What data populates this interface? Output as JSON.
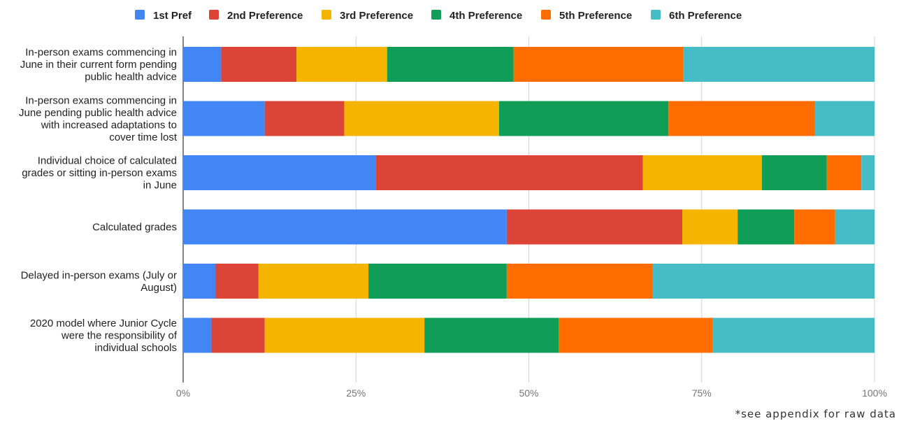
{
  "chart_data": {
    "type": "bar",
    "orientation": "horizontal",
    "stacked": true,
    "categories": [
      [
        "In-person exams commencing in",
        "June in their current form pending",
        "public health advice"
      ],
      [
        "In-person exams commencing in",
        "June pending public health advice",
        "with increased adaptations to",
        "cover time lost"
      ],
      [
        "Individual choice of calculated",
        "grades or sitting in-person exams",
        "in June"
      ],
      [
        "Calculated grades"
      ],
      [
        "Delayed in-person exams (July or",
        "August)"
      ],
      [
        "2020 model where Junior Cycle",
        "were the responsibility of",
        "individual schools"
      ]
    ],
    "series": [
      {
        "name": "1st Pref",
        "color": "#4285F4",
        "values": [
          5.5,
          11.8,
          27.9,
          46.8,
          4.7,
          4.1
        ]
      },
      {
        "name": "2nd Preference",
        "color": "#DB4437",
        "values": [
          10.9,
          11.5,
          38.6,
          25.4,
          6.2,
          7.7
        ]
      },
      {
        "name": "3rd Preference",
        "color": "#F4B400",
        "values": [
          13.1,
          22.4,
          17.2,
          8.0,
          15.9,
          23.1
        ]
      },
      {
        "name": "4th Preference",
        "color": "#0F9D58",
        "values": [
          18.3,
          24.5,
          9.4,
          8.2,
          20.0,
          19.4
        ]
      },
      {
        "name": "5th Preference",
        "color": "#FF6D01",
        "values": [
          24.5,
          21.2,
          5.0,
          5.9,
          21.1,
          22.3
        ]
      },
      {
        "name": "6th Preference",
        "color": "#46BDC6",
        "values": [
          27.7,
          8.6,
          1.9,
          5.7,
          32.1,
          23.4
        ]
      }
    ],
    "xlim": [
      0,
      100
    ],
    "x_ticks": [
      "0%",
      "25%",
      "50%",
      "75%",
      "100%"
    ],
    "grid": true,
    "legend_position": "top",
    "footnote": "*see appendix for raw data"
  }
}
